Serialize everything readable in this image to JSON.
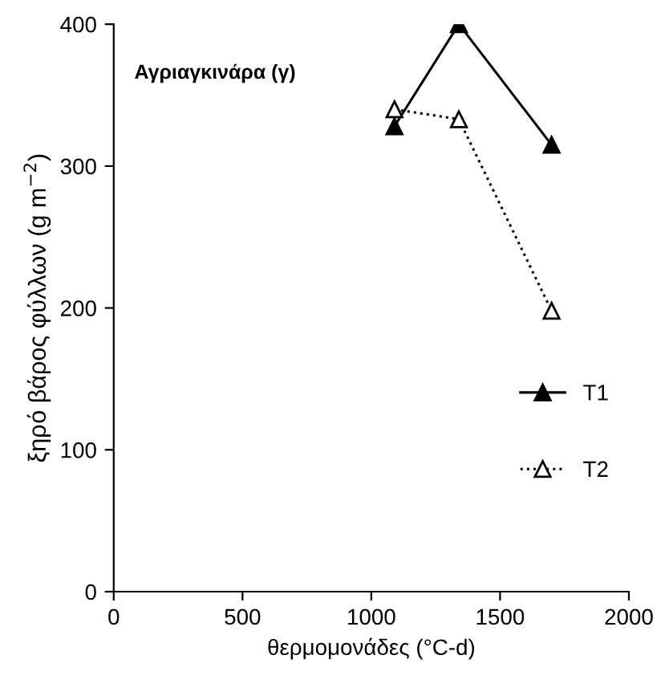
{
  "chart_data": {
    "type": "line",
    "title": "Αγριαγκινάρα (γ)",
    "xlabel": "θερμομονάδες (°C-d)",
    "ylabel": "ξηρό βάρος φύλλων (g m$^{−2}$)",
    "x": [
      1090,
      1340,
      1700
    ],
    "series": [
      {
        "name": "T1",
        "color": "#000000",
        "values": [
          328,
          400,
          315
        ],
        "marker": "triangle",
        "line_style": "solid"
      },
      {
        "name": "T2",
        "color": "#000000",
        "values": [
          340,
          333,
          198
        ],
        "marker": "triangle",
        "line_style": "dotted"
      }
    ],
    "xlim": [
      0,
      2000
    ],
    "xticks": [
      0,
      500,
      1000,
      1500,
      2000
    ],
    "ylim": [
      0,
      400
    ],
    "yticks": [
      0,
      100,
      200,
      300,
      400
    ],
    "grid": false,
    "legend": "center right"
  }
}
